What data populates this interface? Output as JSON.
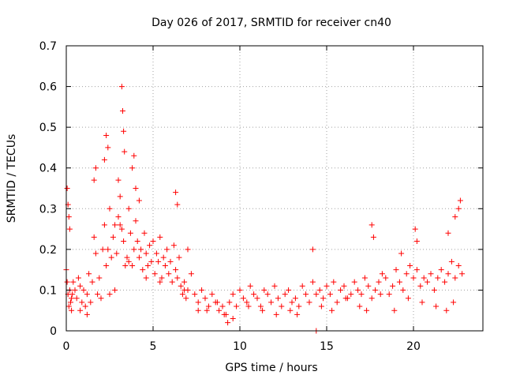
{
  "chart_data": {
    "type": "scatter",
    "title": "Day 026 of 2017, SRMTID for receiver cn40",
    "xlabel": "GPS time / hours",
    "ylabel": "SRMTID / TECUs",
    "xlim": [
      0,
      24
    ],
    "ylim": [
      0,
      0.7
    ],
    "xticks": [
      0,
      5,
      10,
      15,
      20
    ],
    "xtick_labels": [
      "0",
      "5",
      "10",
      "15",
      "20"
    ],
    "yticks": [
      0,
      0.1,
      0.2,
      0.3,
      0.4,
      0.5,
      0.6,
      0.7
    ],
    "ytick_labels": [
      "0",
      "0.1",
      "0.2",
      "0.3",
      "0.4",
      "0.5",
      "0.6",
      "0.7"
    ],
    "grid": true,
    "marker": "+",
    "color": "#ff0000",
    "series": [
      {
        "name": "SRMTID",
        "x": [
          0.0,
          0.05,
          0.1,
          0.15,
          0.2,
          0.25,
          0.3,
          0.35,
          0.4,
          0.5,
          0.6,
          0.7,
          0.8,
          0.9,
          1.0,
          1.1,
          1.2,
          1.3,
          1.4,
          1.5,
          1.6,
          1.7,
          1.8,
          1.9,
          2.0,
          2.1,
          2.2,
          2.3,
          2.4,
          2.5,
          2.6,
          2.7,
          2.8,
          2.9,
          3.0,
          3.1,
          3.2,
          3.3,
          3.4,
          3.5,
          3.6,
          3.7,
          3.8,
          3.9,
          4.0,
          4.1,
          4.2,
          4.3,
          4.4,
          4.5,
          4.6,
          4.7,
          4.8,
          4.9,
          5.0,
          5.1,
          5.2,
          5.3,
          5.4,
          5.5,
          5.6,
          5.7,
          5.8,
          5.9,
          6.0,
          6.1,
          6.2,
          6.3,
          6.4,
          6.5,
          6.6,
          6.7,
          6.8,
          6.9,
          7.0,
          7.2,
          7.4,
          7.6,
          7.8,
          8.0,
          8.2,
          8.4,
          8.6,
          8.8,
          9.0,
          9.2,
          9.4,
          9.6,
          9.8,
          10.0,
          10.2,
          10.4,
          10.6,
          10.8,
          11.0,
          11.2,
          11.4,
          11.6,
          11.8,
          12.0,
          12.2,
          12.4,
          12.6,
          12.8,
          13.0,
          13.2,
          13.4,
          13.6,
          13.8,
          14.0,
          14.2,
          14.4,
          14.6,
          14.8,
          15.0,
          15.2,
          15.4,
          15.6,
          15.8,
          16.0,
          16.2,
          16.4,
          16.6,
          16.8,
          17.0,
          17.2,
          17.4,
          17.6,
          17.8,
          18.0,
          18.2,
          18.4,
          18.6,
          18.8,
          19.0,
          19.2,
          19.4,
          19.6,
          19.8,
          20.0,
          20.2,
          20.4,
          20.6,
          20.8,
          21.0,
          21.2,
          21.4,
          21.6,
          21.8,
          22.0,
          22.2,
          22.4,
          22.6,
          22.8,
          0.05,
          0.1,
          0.15,
          0.2,
          1.6,
          1.7,
          2.2,
          2.3,
          2.4,
          3.0,
          3.1,
          3.2,
          3.25,
          3.3,
          3.35,
          3.8,
          3.9,
          4.0,
          4.2,
          6.3,
          6.4,
          7.0,
          14.2,
          14.4,
          17.6,
          17.7,
          19.3,
          20.1,
          20.2,
          22.0,
          22.4,
          22.6,
          22.7,
          0.3,
          0.8,
          1.2,
          2.5,
          2.8,
          3.6,
          4.6,
          5.4,
          6.8,
          7.6,
          8.1,
          8.7,
          9.1,
          9.3,
          9.6,
          10.5,
          11.3,
          12.1,
          12.9,
          13.3,
          14.7,
          15.3,
          16.1,
          16.9,
          17.3,
          18.1,
          18.9,
          19.7,
          20.5,
          21.3,
          21.9,
          22.3
        ],
        "y": [
          0.15,
          0.12,
          0.09,
          0.06,
          0.1,
          0.07,
          0.05,
          0.09,
          0.12,
          0.1,
          0.08,
          0.13,
          0.11,
          0.07,
          0.1,
          0.06,
          0.09,
          0.14,
          0.07,
          0.12,
          0.23,
          0.19,
          0.09,
          0.13,
          0.08,
          0.2,
          0.26,
          0.16,
          0.2,
          0.3,
          0.18,
          0.23,
          0.26,
          0.19,
          0.28,
          0.26,
          0.25,
          0.22,
          0.16,
          0.18,
          0.3,
          0.24,
          0.16,
          0.2,
          0.27,
          0.22,
          0.18,
          0.2,
          0.15,
          0.24,
          0.19,
          0.16,
          0.21,
          0.17,
          0.22,
          0.14,
          0.19,
          0.17,
          0.23,
          0.13,
          0.18,
          0.16,
          0.2,
          0.14,
          0.17,
          0.12,
          0.21,
          0.15,
          0.13,
          0.18,
          0.11,
          0.09,
          0.12,
          0.08,
          0.1,
          0.14,
          0.09,
          0.07,
          0.1,
          0.08,
          0.06,
          0.09,
          0.07,
          0.05,
          0.06,
          0.04,
          0.07,
          0.09,
          0.06,
          0.1,
          0.08,
          0.07,
          0.11,
          0.09,
          0.08,
          0.06,
          0.1,
          0.09,
          0.07,
          0.11,
          0.08,
          0.06,
          0.09,
          0.1,
          0.07,
          0.08,
          0.06,
          0.11,
          0.09,
          0.07,
          0.12,
          0.09,
          0.1,
          0.08,
          0.11,
          0.09,
          0.12,
          0.07,
          0.1,
          0.11,
          0.08,
          0.09,
          0.12,
          0.1,
          0.09,
          0.13,
          0.11,
          0.08,
          0.1,
          0.12,
          0.14,
          0.13,
          0.09,
          0.11,
          0.15,
          0.12,
          0.1,
          0.14,
          0.16,
          0.13,
          0.15,
          0.11,
          0.13,
          0.12,
          0.14,
          0.1,
          0.13,
          0.15,
          0.12,
          0.14,
          0.17,
          0.13,
          0.16,
          0.14,
          0.35,
          0.31,
          0.28,
          0.25,
          0.37,
          0.4,
          0.42,
          0.48,
          0.45,
          0.37,
          0.33,
          0.6,
          0.54,
          0.49,
          0.44,
          0.4,
          0.43,
          0.35,
          0.32,
          0.34,
          0.31,
          0.2,
          0.2,
          0.0,
          0.26,
          0.23,
          0.19,
          0.25,
          0.22,
          0.24,
          0.28,
          0.3,
          0.32,
          0.08,
          0.05,
          0.04,
          0.09,
          0.1,
          0.17,
          0.13,
          0.12,
          0.1,
          0.05,
          0.05,
          0.07,
          0.04,
          0.02,
          0.03,
          0.06,
          0.05,
          0.04,
          0.05,
          0.04,
          0.06,
          0.05,
          0.08,
          0.06,
          0.05,
          0.09,
          0.05,
          0.08,
          0.07,
          0.06,
          0.05,
          0.07
        ]
      }
    ]
  }
}
